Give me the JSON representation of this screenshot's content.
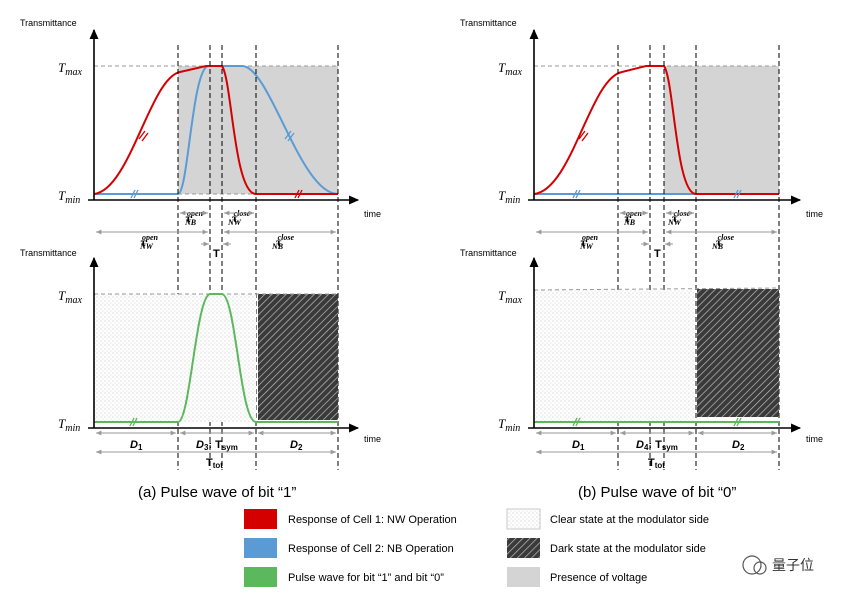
{
  "colors": {
    "red": "#d40000",
    "blue": "#5b9bd5",
    "green": "#5cb85c",
    "gray": "#d4d4d4"
  },
  "labels": {
    "transmittance": "Transmittance",
    "time": "time",
    "T": "T",
    "tmax_sub": "max",
    "tmin_sub": "min",
    "tau": "τ",
    "nw": "NW",
    "nb": "NB",
    "open": "open",
    "close": "close",
    "t_small": "T",
    "D": "D",
    "d1_sub": "1",
    "d2_sub": "2",
    "d3_sub": "3",
    "d4_sub": "4",
    "tsym": ": T",
    "tsym_sub": "sym",
    "ttot": "T",
    "ttot_sub": "tot"
  },
  "captions": {
    "a": "(a) Pulse wave of bit “1”",
    "b": "(b) Pulse wave of bit “0”"
  },
  "legend": [
    {
      "text": "Response of Cell 1: NW Operation",
      "swatch": "red-icon"
    },
    {
      "text": "Response of Cell 2: NB Operation",
      "swatch": "blue-icon"
    },
    {
      "text": "Pulse wave for bit “1” and bit “0”",
      "swatch": "green-icon"
    },
    {
      "text": "Clear state at the modulator side",
      "swatch": "dotted-icon"
    },
    {
      "text": "Dark state at the modulator side",
      "swatch": "hatched-icon"
    },
    {
      "text": "Presence of voltage",
      "swatch": "gray-icon"
    }
  ],
  "watermark": "量子位"
}
